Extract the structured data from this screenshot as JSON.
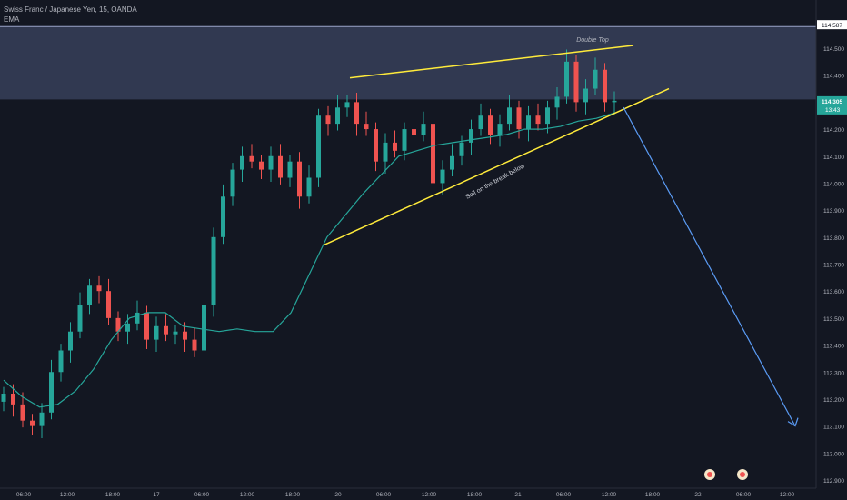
{
  "header": {
    "symbol_title": "Swiss Franc / Japanese Yen, 15, OANDA",
    "indicator": "EMA"
  },
  "colors": {
    "background": "#131722",
    "up": "#26a69a",
    "down": "#ef5350",
    "ema": "#26a69a",
    "trendline": "#ffeb3b",
    "zone": "#4a5578",
    "projection": "#5b9cf6",
    "axis_text": "#b2b5be",
    "price_tag_current": "#26a69a",
    "price_tag_top": "#ffffff"
  },
  "annotations": {
    "double_top": "Double Top",
    "sell_text": "Sell on the break below"
  },
  "price_axis": {
    "labels": [
      "114.500",
      "114.400",
      "114.300",
      "114.200",
      "114.100",
      "114.000",
      "113.900",
      "113.800",
      "113.700",
      "113.600",
      "113.500",
      "113.400",
      "113.300",
      "113.200",
      "113.100",
      "113.000",
      "112.900"
    ],
    "top_tag": "114.587",
    "current_price": "114.305",
    "countdown": "13:43"
  },
  "time_axis": {
    "labels": [
      "06:00",
      "12:00",
      "18:00",
      "17",
      "06:00",
      "12:00",
      "18:00",
      "20",
      "06:00",
      "12:00",
      "18:00",
      "21",
      "06:00",
      "12:00",
      "18:00",
      "22",
      "06:00",
      "12:00"
    ]
  },
  "chart_data": {
    "type": "candlestick",
    "symbol": "Swiss Franc / Japanese Yen, 15, OANDA",
    "y_range": [
      112.88,
      114.62
    ],
    "resistance_zone": [
      114.31,
      114.58
    ],
    "trendline_upper": [
      [
        114.39,
        114.51
      ]
    ],
    "trendline_lower": [
      [
        113.77,
        114.35
      ]
    ],
    "ema_path": [
      113.27,
      113.21,
      113.17,
      113.18,
      113.23,
      113.31,
      113.42,
      113.5,
      113.52,
      113.52,
      113.47,
      113.46,
      113.45,
      113.46,
      113.45,
      113.45,
      113.52,
      113.66,
      113.8,
      113.88,
      113.96,
      114.03,
      114.1,
      114.12,
      114.14,
      114.15,
      114.16,
      114.17,
      114.18,
      114.2,
      114.2,
      114.21,
      114.23,
      114.24,
      114.26
    ],
    "candle_closes": [
      113.22,
      113.18,
      113.12,
      113.1,
      113.15,
      113.3,
      113.38,
      113.45,
      113.55,
      113.62,
      113.6,
      113.5,
      113.45,
      113.48,
      113.52,
      113.42,
      113.47,
      113.44,
      113.45,
      113.42,
      113.38,
      113.55,
      113.8,
      113.95,
      114.05,
      114.1,
      114.08,
      114.05,
      114.1,
      114.02,
      114.08,
      113.95,
      114.02,
      114.25,
      114.22,
      114.28,
      114.3,
      114.22,
      114.2,
      114.08,
      114.15,
      114.12,
      114.2,
      114.18,
      114.22,
      114.0,
      114.05,
      114.1,
      114.15,
      114.2,
      114.25,
      114.18,
      114.22,
      114.28,
      114.2,
      114.25,
      114.22,
      114.28,
      114.32,
      114.45,
      114.3,
      114.35,
      114.42,
      114.3,
      114.305
    ],
    "projection_target": 113.1
  }
}
